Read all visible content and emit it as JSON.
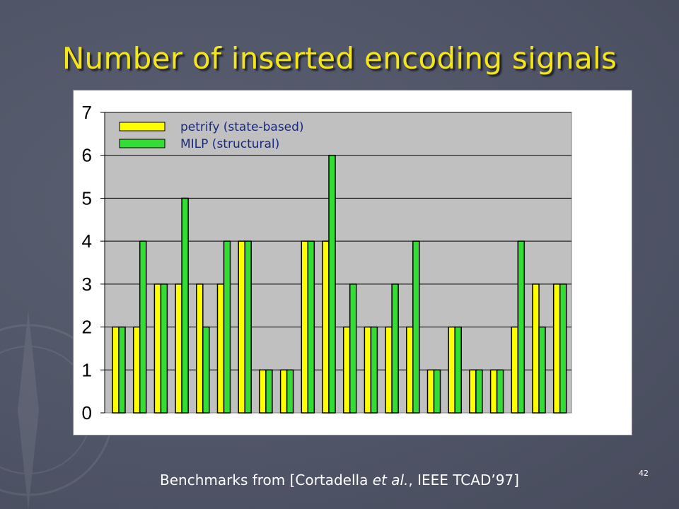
{
  "slide": {
    "title": "Number of inserted encoding signals",
    "footer_prefix": "Benchmarks from [Cortadella ",
    "footer_italic": "et al.",
    "footer_suffix": ", IEEE TCAD’97]",
    "page_number": "42"
  },
  "colors": {
    "background": "#4f5466",
    "title": "#f4e619",
    "plot_area": "#c0c0c0",
    "petrify": "#ffff00",
    "milp": "#33dd33"
  },
  "chart_data": {
    "type": "bar",
    "title": "",
    "xlabel": "",
    "ylabel": "",
    "ylim": [
      0,
      7
    ],
    "yticks": [
      "0",
      "1",
      "2",
      "3",
      "4",
      "5",
      "6",
      "7"
    ],
    "grid": true,
    "legend_position": "top-left",
    "categories": [
      "",
      "",
      "",
      "",
      "",
      "",
      "",
      "",
      "",
      "",
      "",
      "",
      "",
      "",
      "",
      "",
      "",
      "",
      "",
      "",
      "",
      ""
    ],
    "series": [
      {
        "name": "petrify (state-based)",
        "color": "#ffff00",
        "values": [
          2,
          2,
          3,
          3,
          3,
          3,
          4,
          1,
          1,
          4,
          4,
          2,
          2,
          2,
          2,
          1,
          2,
          1,
          1,
          2,
          3,
          3
        ]
      },
      {
        "name": "MILP (structural)",
        "color": "#33dd33",
        "values": [
          2,
          4,
          3,
          5,
          2,
          4,
          4,
          1,
          1,
          4,
          6,
          3,
          2,
          3,
          4,
          1,
          2,
          1,
          1,
          4,
          2,
          3
        ]
      }
    ]
  }
}
